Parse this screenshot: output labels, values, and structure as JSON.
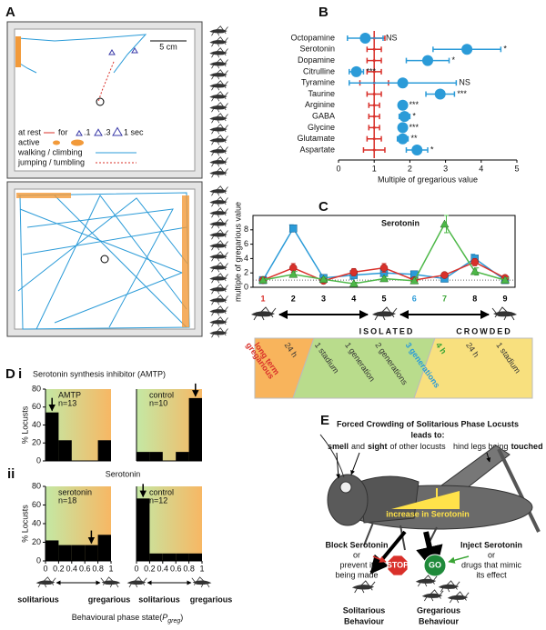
{
  "panel_labels": {
    "a": "A",
    "b": "B",
    "c": "C",
    "d": "D",
    "d_i": "i",
    "d_ii": "ii",
    "e": "E"
  },
  "panel_a": {
    "scale_bar": "5 cm",
    "legend": [
      "at rest",
      "for",
      ".1",
      ".3",
      "1 sec",
      "active",
      "walking / climbing",
      "jumping / tumbling"
    ]
  },
  "chart_data": [
    {
      "type": "dot",
      "categories": [
        "Octopamine",
        "Serotonin",
        "Dopamine",
        "Citrulline",
        "Tyramine",
        "Taurine",
        "Arginine",
        "GABA",
        "Glycine",
        "Glutamate",
        "Aspartate"
      ],
      "series": [
        {
          "color": "#d9302a",
          "values": [
            1,
            1,
            1,
            1,
            1,
            1,
            1,
            1,
            1,
            1,
            1
          ],
          "errors": [
            0.3,
            0.2,
            0.2,
            0.2,
            0.4,
            0.2,
            0.15,
            0.15,
            0.15,
            0.2,
            0.3
          ]
        },
        {
          "color": "#2b9bd8",
          "values": [
            0.75,
            3.6,
            2.5,
            0.5,
            1.8,
            2.85,
            1.8,
            1.85,
            1.8,
            1.8,
            2.2
          ],
          "errors": [
            0.5,
            0.95,
            0.6,
            0.2,
            1.5,
            0.4,
            0.1,
            0.15,
            0.1,
            0.15,
            0.3
          ]
        }
      ],
      "significance": [
        "NS",
        "*",
        "*",
        "***",
        "NS",
        "***",
        "***",
        "*",
        "***",
        "**",
        "*"
      ],
      "xlim": [
        0,
        5
      ],
      "xticks": [
        0,
        1,
        2,
        3,
        4,
        5
      ],
      "xlabel": "Multiple of gregarious value",
      "reference_line": 1
    },
    {
      "type": "line",
      "title": "Serotonin",
      "ylabel": "multiple of gregarious value",
      "categories": [
        "1",
        "2",
        "3",
        "4",
        "5",
        "6",
        "7",
        "8",
        "9"
      ],
      "category_colors": [
        "#d9302a",
        "#000000",
        "#000000",
        "#000000",
        "#000000",
        "#2b9bd8",
        "#3aa535",
        "#000000",
        "#000000"
      ],
      "series": [
        {
          "color": "#2b9bd8",
          "marker": "square",
          "values": [
            1,
            8.2,
            1.3,
            1.7,
            2.0,
            1.8,
            1.2,
            4.0,
            1.0
          ],
          "errors": [
            0.2,
            0.5,
            0.3,
            0.6,
            0.5,
            0.4,
            0.3,
            0.6,
            0.3
          ]
        },
        {
          "color": "#d9302a",
          "marker": "circle",
          "values": [
            1,
            2.7,
            0.9,
            2.1,
            2.7,
            1.0,
            1.7,
            3.5,
            1.3
          ],
          "errors": [
            0.2,
            0.6,
            0.2,
            0.5,
            0.6,
            0.3,
            0.3,
            0.5,
            0.3
          ]
        },
        {
          "color": "#4db848",
          "marker": "triangle",
          "values": [
            1,
            1.8,
            1.1,
            0.5,
            1.2,
            0.9,
            8.8,
            2.2,
            1.0
          ],
          "errors": [
            0.2,
            0.4,
            0.3,
            0.2,
            0.3,
            0.3,
            1.2,
            0.5,
            0.3
          ]
        }
      ],
      "ylim": [
        0,
        10
      ],
      "yticks": [
        0,
        2,
        4,
        6,
        8
      ],
      "reference_line": 1,
      "phases": [
        "ISOLATED",
        "CROWDED"
      ],
      "timeline": [
        {
          "lines": [
            "long term",
            "gregarious"
          ],
          "color": "#d9302a"
        },
        {
          "lines": [
            "24 h"
          ],
          "color": "#333333"
        },
        {
          "lines": [
            "1 stadium"
          ],
          "color": "#333333"
        },
        {
          "lines": [
            "1 generation"
          ],
          "color": "#333333"
        },
        {
          "lines": [
            "2 generations"
          ],
          "color": "#333333"
        },
        {
          "lines": [
            "3 generations"
          ],
          "color": "#2b9bd8"
        },
        {
          "lines": [
            "4 h"
          ],
          "color": "#3aa535"
        },
        {
          "lines": [
            "24 h"
          ],
          "color": "#333333"
        },
        {
          "lines": [
            "1 stadium"
          ],
          "color": "#333333"
        }
      ]
    },
    {
      "type": "histogram",
      "bins": [
        0,
        0.2,
        0.4,
        0.6,
        0.8,
        1
      ],
      "values": [
        54,
        23,
        0,
        0,
        23
      ],
      "color": "#000000",
      "ylim": [
        0,
        80
      ],
      "yticks": [
        0,
        20,
        40,
        60,
        80
      ],
      "ylabel": "% Locusts",
      "label": "AMTP",
      "n": "n=13",
      "arrow_x": 0.1
    },
    {
      "type": "histogram",
      "bins": [
        0,
        0.2,
        0.4,
        0.6,
        0.8,
        1
      ],
      "values": [
        10,
        10,
        0,
        10,
        70
      ],
      "color": "#000000",
      "ylim": [
        0,
        80
      ],
      "label": "control",
      "n": "n=10",
      "arrow_x": 0.9
    },
    {
      "type": "histogram",
      "bins": [
        0,
        0.2,
        0.4,
        0.6,
        0.8,
        1
      ],
      "values": [
        22,
        17,
        17,
        17,
        28
      ],
      "color": "#000000",
      "ylim": [
        0,
        80
      ],
      "yticks": [
        0,
        20,
        40,
        60,
        80
      ],
      "xticks": [
        0,
        0.2,
        0.4,
        0.6,
        0.8,
        1
      ],
      "ylabel": "% Locusts",
      "label": "serotonin",
      "n": "n=18",
      "arrow_x": 0.7
    },
    {
      "type": "histogram",
      "bins": [
        0,
        0.2,
        0.4,
        0.6,
        0.8,
        1
      ],
      "values": [
        67,
        8,
        8,
        8,
        8
      ],
      "color": "#000000",
      "ylim": [
        0,
        80
      ],
      "xticks": [
        0,
        0.2,
        0.4,
        0.6,
        0.8,
        1
      ],
      "label": "control",
      "n": "n=12",
      "arrow_x": 0.1
    }
  ],
  "panel_d": {
    "titles": [
      "Serotonin synthesis inhibitor (AMTP)",
      "Serotonin"
    ],
    "gradient": [
      "#c4e8a4",
      "#f7b764"
    ],
    "poles": [
      "solitarious",
      "gregarious",
      "solitarious",
      "gregarious"
    ],
    "xlabel": [
      "Behavioural phase state(",
      "P",
      "greg",
      ")"
    ]
  },
  "panel_e": {
    "title": "Forced Crowding of Solitarious Phase Locusts",
    "leads_to": "leads to:",
    "smell_sight": [
      "smell",
      "and",
      "sight",
      "of other locusts"
    ],
    "touched": [
      "hind legs being",
      "touched"
    ],
    "increase": "increase in Serotonin",
    "block": [
      "Block Serotonin",
      "or",
      "prevent it",
      "being made"
    ],
    "stop": "STOP",
    "go": "GO",
    "inject": [
      "Inject Serotonin",
      "or",
      "drugs that mimic",
      "its effect"
    ],
    "solitarious": [
      "Solitarious",
      "Behaviour"
    ],
    "gregarious": [
      "Gregarious",
      "Behaviour"
    ]
  }
}
